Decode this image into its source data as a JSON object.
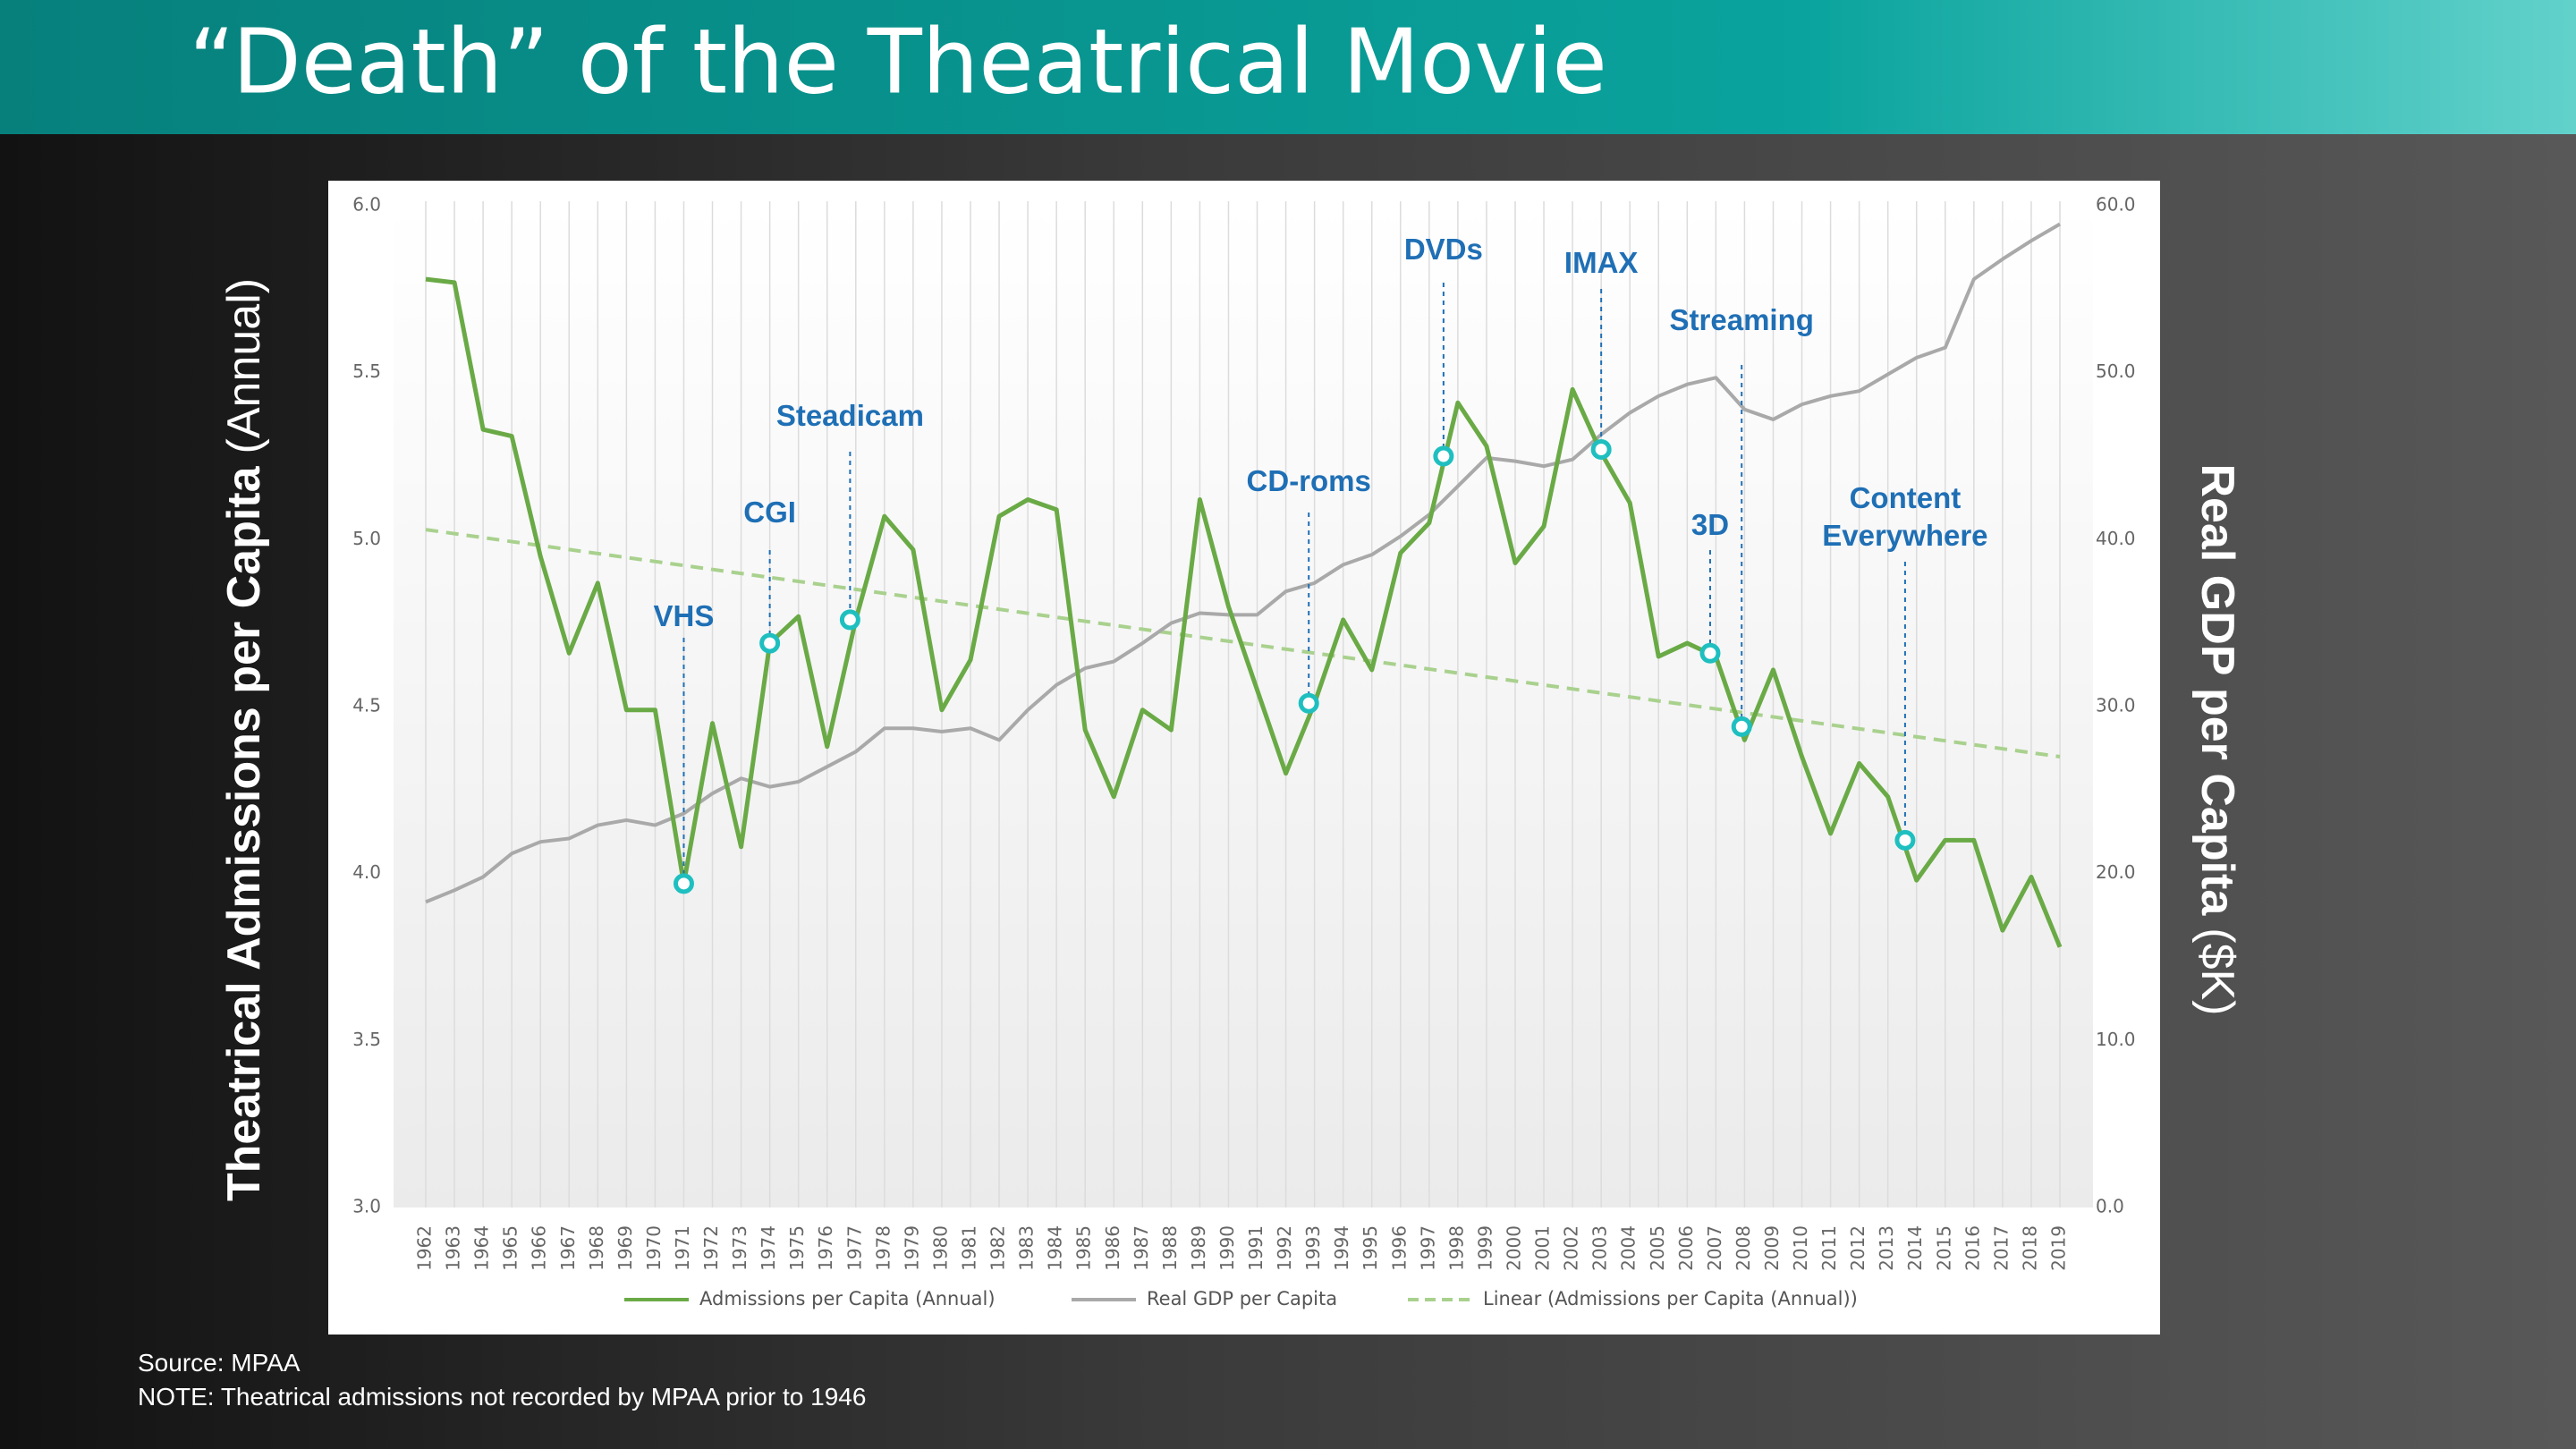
{
  "chart_data": {
    "type": "line",
    "title": "“Death” of the Theatrical Movie",
    "ylabel": "Theatrical Admissions per Capita",
    "ylabel_unit": "(Annual)",
    "y2label": "Real GDP per Capita",
    "y2label_unit": "($K)",
    "source": "Source: MPAA",
    "note": "NOTE: Theatrical admissions not recorded by MPAA prior to 1946",
    "x": [
      1962,
      1963,
      1964,
      1965,
      1966,
      1967,
      1968,
      1969,
      1970,
      1971,
      1972,
      1973,
      1974,
      1975,
      1976,
      1977,
      1978,
      1979,
      1980,
      1981,
      1982,
      1983,
      1984,
      1985,
      1986,
      1987,
      1988,
      1989,
      1990,
      1991,
      1992,
      1993,
      1994,
      1995,
      1996,
      1997,
      1998,
      1999,
      2000,
      2001,
      2002,
      2003,
      2004,
      2005,
      2006,
      2007,
      2008,
      2009,
      2010,
      2011,
      2012,
      2013,
      2014,
      2015,
      2016,
      2017,
      2018,
      2019
    ],
    "xlim": [
      1962,
      2019
    ],
    "ylim": [
      3,
      6
    ],
    "yticks": [
      {
        "value": 3,
        "label": "3.0"
      },
      {
        "value": 3.5,
        "label": "3.5"
      },
      {
        "value": 4,
        "label": "4.0"
      },
      {
        "value": 4.5,
        "label": "4.5"
      },
      {
        "value": 5,
        "label": "5.0"
      },
      {
        "value": 5.5,
        "label": "5.5"
      },
      {
        "value": 6,
        "label": "6.0"
      }
    ],
    "y2lim": [
      0,
      60
    ],
    "y2ticks": [
      {
        "value": 0,
        "label": "0.0"
      },
      {
        "value": 10,
        "label": "10.0"
      },
      {
        "value": 20,
        "label": "20.0"
      },
      {
        "value": 30,
        "label": "30.0"
      },
      {
        "value": 40,
        "label": "40.0"
      },
      {
        "value": 50,
        "label": "50.0"
      },
      {
        "value": 60,
        "label": "60.0"
      }
    ],
    "vgrid": true,
    "series": [
      {
        "name": "Admissions per Capita (Annual)",
        "color": "#6aaa46",
        "values": [
          5.78,
          5.77,
          5.33,
          5.31,
          4.95,
          4.66,
          4.87,
          4.49,
          4.49,
          3.97,
          4.45,
          4.08,
          4.69,
          4.77,
          4.38,
          4.76,
          5.07,
          4.97,
          4.49,
          4.64,
          5.07,
          5.12,
          5.09,
          4.43,
          4.23,
          4.49,
          4.43,
          5.12,
          4.8,
          4.55,
          4.3,
          4.51,
          4.76,
          4.61,
          4.96,
          5.05,
          5.41,
          5.28,
          4.93,
          5.04,
          5.45,
          5.26,
          5.11,
          4.65,
          4.69,
          4.65,
          4.4,
          4.61,
          4.35,
          4.12,
          4.33,
          4.23,
          3.98,
          4.1,
          4.1,
          3.83,
          3.99,
          3.78
        ]
      },
      {
        "name": "Real GDP per Capita",
        "color": "#a9a9a9",
        "axis": "y2",
        "values": [
          18.3,
          19.0,
          19.8,
          21.2,
          21.9,
          22.1,
          22.9,
          23.2,
          22.9,
          23.6,
          24.8,
          25.7,
          25.2,
          25.5,
          26.4,
          27.3,
          28.7,
          28.7,
          28.5,
          28.7,
          28.0,
          29.8,
          31.3,
          32.3,
          32.7,
          33.8,
          35.0,
          35.6,
          35.5,
          35.5,
          36.9,
          37.4,
          38.5,
          39.1,
          40.2,
          41.5,
          43.2,
          44.9,
          44.7,
          44.4,
          44.8,
          46.3,
          47.6,
          48.6,
          49.3,
          49.7,
          47.8,
          47.2,
          48.1,
          48.6,
          48.9,
          49.9,
          50.9,
          51.5,
          55.6,
          56.8,
          57.9,
          58.9
        ]
      }
    ],
    "trend": {
      "name": "Linear (Admissions per Capita (Annual))",
      "color": "#a9d18e",
      "start": 5.03,
      "end": 4.35
    },
    "annotations": [
      {
        "label": "VHS",
        "x": 1971,
        "value": 3.97
      },
      {
        "label": "CGI",
        "x": 1974,
        "value": 4.69
      },
      {
        "label": "Steadicam",
        "x": 1976.8,
        "value": 4.76
      },
      {
        "label": "CD-roms",
        "x": 1992.8,
        "value": 4.51
      },
      {
        "label": "DVDs",
        "x": 1997.5,
        "value": 5.25
      },
      {
        "label": "IMAX",
        "x": 2003,
        "value": 5.27
      },
      {
        "label": "3D",
        "x": 2006.8,
        "value": 4.66
      },
      {
        "label": "Streaming",
        "x": 2007.9,
        "value": 4.44
      },
      {
        "label": "Content Everywhere",
        "x": 2013.6,
        "value": 4.1
      }
    ],
    "annotation_color": "#1f6fb5",
    "marker_color": "#1fbfc0"
  }
}
